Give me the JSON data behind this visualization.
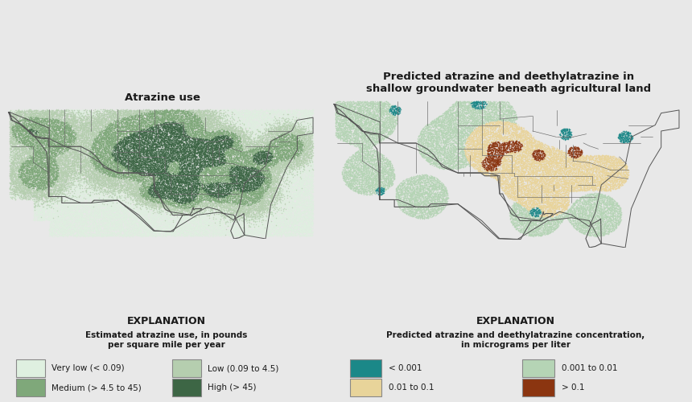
{
  "background_color": "#e8e8e8",
  "map_left_bg": "#f5f5f5",
  "map_right_bg": "#f5f5f5",
  "left_title": "Atrazine use",
  "right_title": "Predicted atrazine and deethylatrazine in\nshallow groundwater beneath agricultural land",
  "left_explanation_title": "EXPLANATION",
  "right_explanation_title": "EXPLANATION",
  "left_explanation_subtitle": "Estimated atrazine use, in pounds\nper square mile per year",
  "right_explanation_subtitle": "Predicted atrazine and deethylatrazine concentration,\nin micrograms per liter",
  "left_legend": [
    {
      "label": "Very low (< 0.09)",
      "color": "#dff0e0"
    },
    {
      "label": "Low (0.09 to 4.5)",
      "color": "#b5ceaf"
    },
    {
      "label": "Medium (> 4.5 to 45)",
      "color": "#7fa87a"
    },
    {
      "label": "High (> 45)",
      "color": "#3d6645"
    }
  ],
  "right_legend": [
    {
      "label": "< 0.001",
      "color": "#1b8888"
    },
    {
      "label": "0.001 to 0.01",
      "color": "#b5d4b5"
    },
    {
      "label": "0.01 to 0.1",
      "color": "#e8d49a"
    },
    {
      "label": "> 0.1",
      "color": "#8b3510"
    }
  ],
  "title_fontsize": 9.5,
  "explanation_title_fontsize": 9,
  "explanation_subtitle_fontsize": 7.5,
  "legend_fontsize": 7.5
}
